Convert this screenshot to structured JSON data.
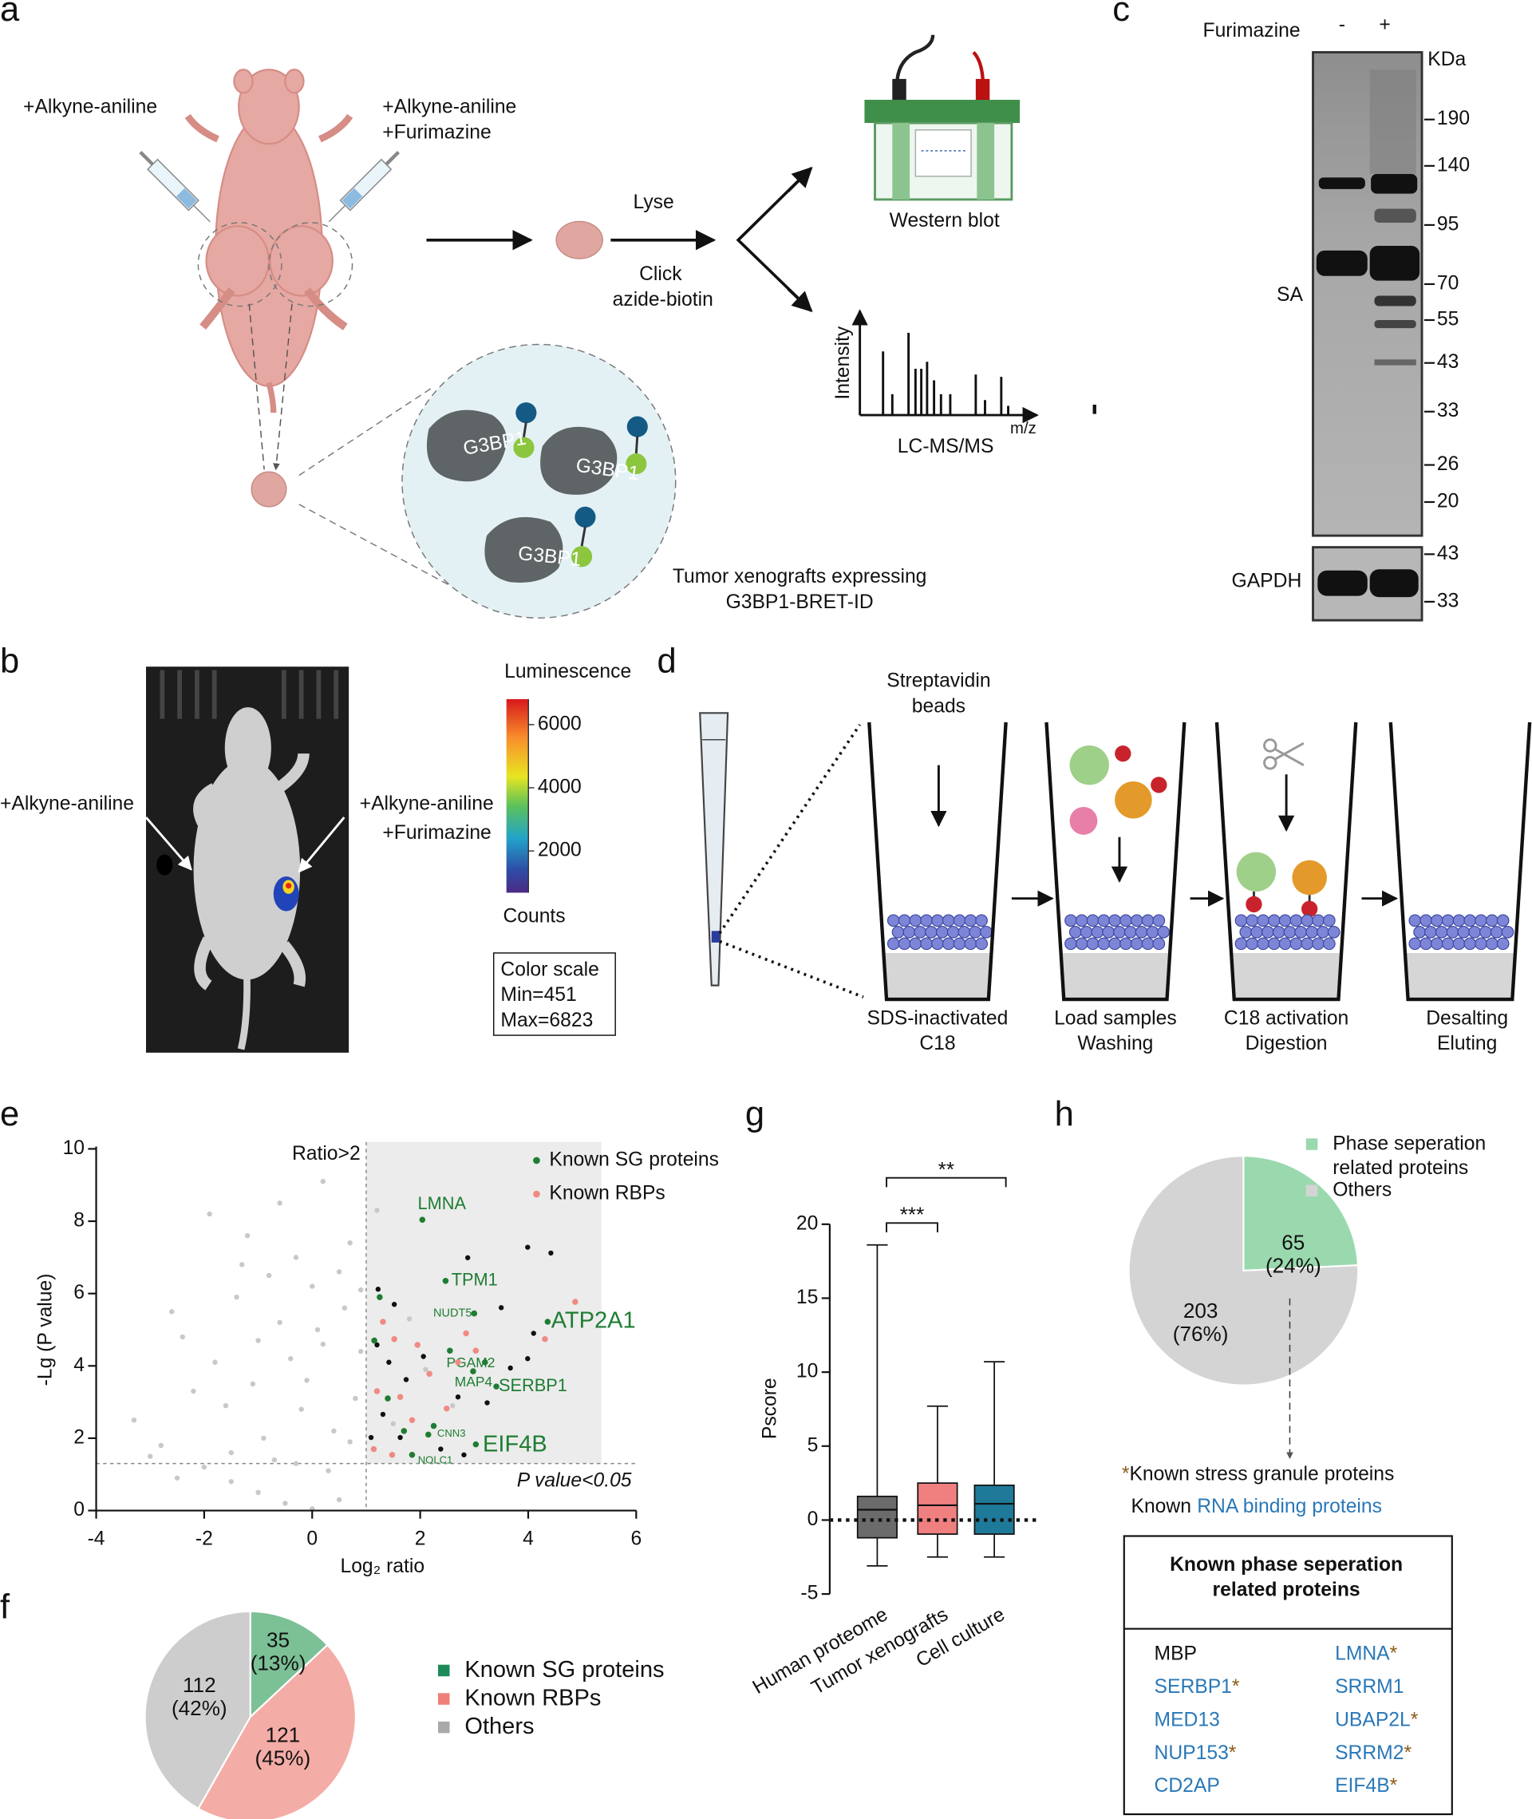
{
  "panels": {
    "a": {
      "label": "a",
      "left_group": "+Alkyne-aniline",
      "right_group": [
        "+Alkyne-aniline",
        "+Furimazine"
      ],
      "lyse": "Lyse",
      "click": [
        "Click",
        "azide-biotin"
      ],
      "western": "Western blot",
      "ms_ylabel": "Intensity",
      "ms_xlabel": "m/z",
      "ms": "LC-MS/MS",
      "protein": "G3BP1",
      "caption": [
        "Tumor xenografts expressing",
        "G3BP1-BRET-ID"
      ]
    },
    "b": {
      "label": "b",
      "left_group": "+Alkyne-aniline",
      "right_group": [
        "+Alkyne-aniline",
        "+Furimazine"
      ],
      "colorbar_title": "Luminescence",
      "colorbar_ticks": [
        6000,
        4000,
        2000
      ],
      "colorbar_unit": "Counts",
      "scale_box": [
        "Color scale",
        "Min=451",
        "Max=6823"
      ]
    },
    "c": {
      "label": "c",
      "treatment": "Furimazine",
      "lanes": [
        "-",
        "+"
      ],
      "unit": "KDa",
      "sa_label": "SA",
      "sa_markers": [
        190,
        140,
        95,
        70,
        55,
        43,
        33,
        26,
        20
      ],
      "gapdh_label": "GAPDH",
      "gapdh_markers": [
        43,
        33
      ]
    },
    "d": {
      "label": "d",
      "beads": [
        "Streptavidin",
        "beads"
      ],
      "steps": [
        [
          "SDS-inactivated",
          "C18"
        ],
        [
          "Load samples",
          "Washing"
        ],
        [
          "C18 activation",
          "Digestion"
        ],
        [
          "Desalting",
          "Eluting"
        ]
      ]
    }
  },
  "chart_data": [
    {
      "type": "scatter",
      "label": "e",
      "xlabel": "Log₂ ratio",
      "ylabel": "-Lg (P value)",
      "xlim": [
        -4,
        6
      ],
      "xticks": [
        -4,
        -2,
        0,
        2,
        4,
        6
      ],
      "ylim": [
        0,
        10
      ],
      "yticks": [
        0,
        2,
        4,
        6,
        8,
        10
      ],
      "thresholds": {
        "x": 1,
        "y": 1.3
      },
      "annotations": [
        "Ratio>2",
        "P value<0.05"
      ],
      "legend": "upper right",
      "series": [
        {
          "color": "#c8c8c8",
          "x": [
            -3.3,
            -2.8,
            -2,
            -1.5,
            -1,
            -0.5,
            0,
            0.5,
            -1.9,
            -1.2,
            -0.6,
            0.2,
            1.2,
            0.7,
            -0.8,
            -1.4,
            -2.4,
            -1.8,
            -1.1,
            -0.4,
            0.1,
            0.6,
            0.9,
            -0.2,
            0.4,
            -0.9,
            -1.6,
            0.8,
            -0.7,
            0.3,
            -2.2,
            -1.3,
            0,
            -0.3,
            0.5,
            -2.6,
            -0.1,
            0.7,
            -1.5,
            1.8,
            1.5,
            2.1,
            2.6,
            -3,
            -2.5,
            -0.6,
            0.2,
            -1,
            0.9,
            -0.3
          ],
          "y": [
            2.5,
            1.8,
            1.2,
            0.8,
            0.5,
            0.2,
            0.05,
            0.3,
            8.2,
            7.6,
            8.5,
            9.1,
            8.3,
            7.4,
            6.5,
            5.9,
            4.8,
            4.1,
            3.5,
            4.2,
            5,
            5.6,
            4.4,
            2.8,
            2.2,
            2,
            2.9,
            3.1,
            1.4,
            1.1,
            3.3,
            6.8,
            6.2,
            7,
            6.6,
            5.5,
            3.6,
            1.9,
            1.6,
            5.3,
            2.4,
            3.9,
            2.9,
            1.5,
            0.9,
            5.2,
            4.6,
            4.7,
            6.1,
            1.3
          ]
        },
        {
          "color": "#111111",
          "x": [
            1.22,
            2.88,
            3.99,
            4.42,
            1.52,
            3.5,
            4.1,
            3.99,
            3.67,
            3.24,
            2.7,
            1.74,
            1.31,
            1.09,
            1.63,
            2.06,
            2.81,
            2.38,
            1.42,
            1.2
          ],
          "y": [
            6.12,
            6.99,
            7.28,
            7.12,
            5.7,
            5.61,
            4.9,
            4.2,
            3.94,
            2.98,
            3.14,
            3.62,
            2.66,
            2.02,
            2.02,
            4.26,
            1.54,
            1.7,
            4.1,
            4.58
          ]
        },
        {
          "name": "Known SG proteins",
          "color": "#1e7d32",
          "x": [
            2.04,
            2.47,
            3.0,
            4.36,
            2.55,
            2.98,
            3.41,
            2.25,
            3.03,
            1.85,
            1.15,
            1.4,
            1.7,
            2.15,
            1.25,
            3.2
          ],
          "y": [
            8.04,
            6.35,
            5.45,
            5.22,
            4.42,
            3.85,
            3.43,
            2.34,
            1.83,
            1.54,
            4.7,
            3.1,
            2.2,
            2.1,
            5.9,
            4.1
          ],
          "labels": [
            "LMNA",
            "TPM1",
            "NUDT5",
            "ATP2A1",
            "PGAM2",
            "MAP4",
            "SERBP1",
            "CNN3",
            "EIF4B",
            "NOLC1",
            null,
            null,
            null,
            null,
            null,
            null
          ]
        },
        {
          "name": "Known RBPs",
          "color": "#f08a84",
          "x": [
            4.31,
            4.87,
            1.31,
            1.52,
            1.95,
            1.2,
            1.63,
            2.17,
            1.85,
            1.14,
            1.48,
            2.7,
            3.03,
            2.49,
            2.85
          ],
          "y": [
            4.74,
            5.77,
            5.22,
            4.74,
            4.58,
            3.3,
            3.14,
            3.78,
            2.5,
            1.7,
            1.54,
            4.1,
            4.42,
            2.82,
            4.9
          ]
        }
      ]
    },
    {
      "type": "pie",
      "label": "f",
      "categories": [
        "Known SG proteins",
        "Known RBPs",
        "Others"
      ],
      "values": [
        35,
        121,
        112
      ],
      "percent_labels": [
        "(13%)",
        "(45%)",
        "(42%)"
      ],
      "colors": [
        "#7cc096",
        "#f4aca6",
        "#cdcdcd"
      ],
      "legend_colors": [
        "#1e8a5a",
        "#f07f7a",
        "#a9a9a9"
      ]
    },
    {
      "type": "box",
      "label": "g",
      "ylabel": "Pscore",
      "categories": [
        "Human proteome",
        "Tumor xenografts",
        "Cell culture"
      ],
      "colors": [
        "#6b6b6b",
        "#f08080",
        "#1f7a99"
      ],
      "whisker_low": [
        -3.1,
        -2.5,
        -2.5
      ],
      "q1": [
        -1.2,
        -0.95,
        -0.95
      ],
      "median": [
        0.7,
        1.0,
        1.1
      ],
      "q3": [
        1.6,
        2.5,
        2.35
      ],
      "whisker_high": [
        18.6,
        7.7,
        10.7
      ],
      "ylim": [
        -5,
        20
      ],
      "yticks": [
        -5,
        0,
        5,
        10,
        15,
        20
      ],
      "significance": [
        {
          "pair": [
            0,
            1
          ],
          "label": "***"
        },
        {
          "pair": [
            0,
            2
          ],
          "label": "**"
        }
      ]
    },
    {
      "type": "pie",
      "label": "h",
      "categories": [
        "Phase seperation related proteins",
        "Others"
      ],
      "values": [
        65,
        203
      ],
      "percent_labels": [
        "(24%)",
        "(76%)"
      ],
      "colors": [
        "#9ad9ae",
        "#d4d4d4"
      ],
      "notes": {
        "sg_mark": "*",
        "sg_text": "Known stress granule proteins",
        "rbp_prefix": "Known",
        "rbp_text": "RNA binding proteins",
        "sg_color": "#8b5a16",
        "rbp_color": "#2a78b8"
      },
      "table": {
        "title": "Known phase seperation related proteins",
        "rows": [
          [
            {
              "name": "MBP"
            },
            {
              "name": "LMNA",
              "sg": true,
              "rbp": true
            }
          ],
          [
            {
              "name": "SERBP1",
              "sg": true,
              "rbp": true
            },
            {
              "name": "SRRM1",
              "rbp": true
            }
          ],
          [
            {
              "name": "MED13",
              "rbp": true
            },
            {
              "name": "UBAP2L",
              "sg": true,
              "rbp": true
            }
          ],
          [
            {
              "name": "NUP153",
              "sg": true,
              "rbp": true
            },
            {
              "name": "SRRM2",
              "sg": true,
              "rbp": true
            }
          ],
          [
            {
              "name": "CD2AP",
              "rbp": true
            },
            {
              "name": "EIF4B",
              "sg": true,
              "rbp": true
            }
          ]
        ]
      }
    }
  ]
}
